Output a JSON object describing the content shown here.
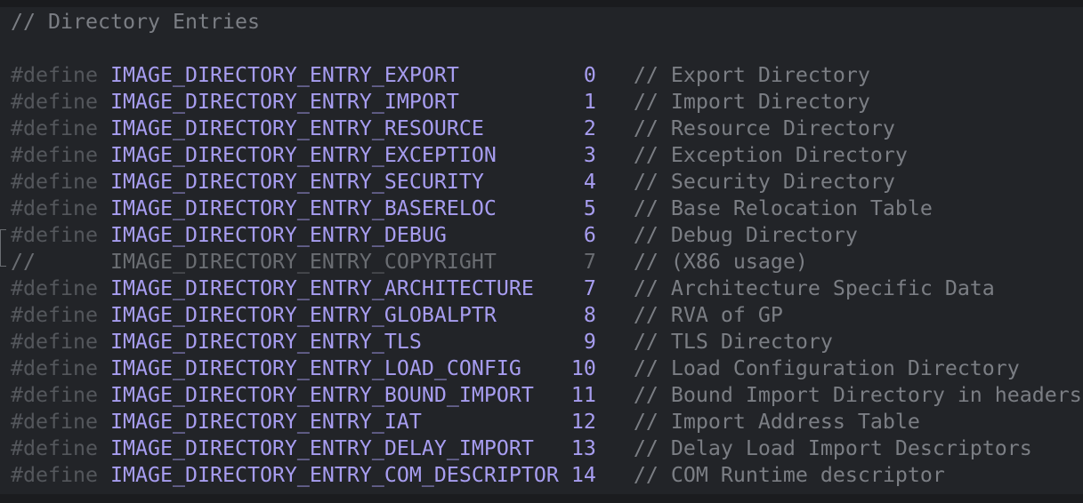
{
  "editor": {
    "header_comment": "// Directory Entries",
    "keyword": "#define",
    "comment_prefix": "//",
    "entries": [
      {
        "name": "IMAGE_DIRECTORY_ENTRY_EXPORT",
        "value": "0",
        "comment": "// Export Directory",
        "commented_out": false
      },
      {
        "name": "IMAGE_DIRECTORY_ENTRY_IMPORT",
        "value": "1",
        "comment": "// Import Directory",
        "commented_out": false
      },
      {
        "name": "IMAGE_DIRECTORY_ENTRY_RESOURCE",
        "value": "2",
        "comment": "// Resource Directory",
        "commented_out": false
      },
      {
        "name": "IMAGE_DIRECTORY_ENTRY_EXCEPTION",
        "value": "3",
        "comment": "// Exception Directory",
        "commented_out": false
      },
      {
        "name": "IMAGE_DIRECTORY_ENTRY_SECURITY",
        "value": "4",
        "comment": "// Security Directory",
        "commented_out": false
      },
      {
        "name": "IMAGE_DIRECTORY_ENTRY_BASERELOC",
        "value": "5",
        "comment": "// Base Relocation Table",
        "commented_out": false
      },
      {
        "name": "IMAGE_DIRECTORY_ENTRY_DEBUG",
        "value": "6",
        "comment": "// Debug Directory",
        "commented_out": false
      },
      {
        "name": "IMAGE_DIRECTORY_ENTRY_COPYRIGHT",
        "value": "7",
        "comment": "// (X86 usage)",
        "commented_out": true
      },
      {
        "name": "IMAGE_DIRECTORY_ENTRY_ARCHITECTURE",
        "value": "7",
        "comment": "// Architecture Specific Data",
        "commented_out": false
      },
      {
        "name": "IMAGE_DIRECTORY_ENTRY_GLOBALPTR",
        "value": "8",
        "comment": "// RVA of GP",
        "commented_out": false
      },
      {
        "name": "IMAGE_DIRECTORY_ENTRY_TLS",
        "value": "9",
        "comment": "// TLS Directory",
        "commented_out": false
      },
      {
        "name": "IMAGE_DIRECTORY_ENTRY_LOAD_CONFIG",
        "value": "10",
        "comment": "// Load Configuration Directory",
        "commented_out": false
      },
      {
        "name": "IMAGE_DIRECTORY_ENTRY_BOUND_IMPORT",
        "value": "11",
        "comment": "// Bound Import Directory in headers",
        "commented_out": false
      },
      {
        "name": "IMAGE_DIRECTORY_ENTRY_IAT",
        "value": "12",
        "comment": "// Import Address Table",
        "commented_out": false
      },
      {
        "name": "IMAGE_DIRECTORY_ENTRY_DELAY_IMPORT",
        "value": "13",
        "comment": "// Delay Load Import Descriptors",
        "commented_out": false
      },
      {
        "name": "IMAGE_DIRECTORY_ENTRY_COM_DESCRIPTOR",
        "value": "14",
        "comment": "// COM Runtime descriptor",
        "commented_out": false
      }
    ]
  },
  "colors": {
    "background": "#222428",
    "macro_name": "#a79df0",
    "keyword": "#54575c",
    "comment": "#7b7e84"
  }
}
